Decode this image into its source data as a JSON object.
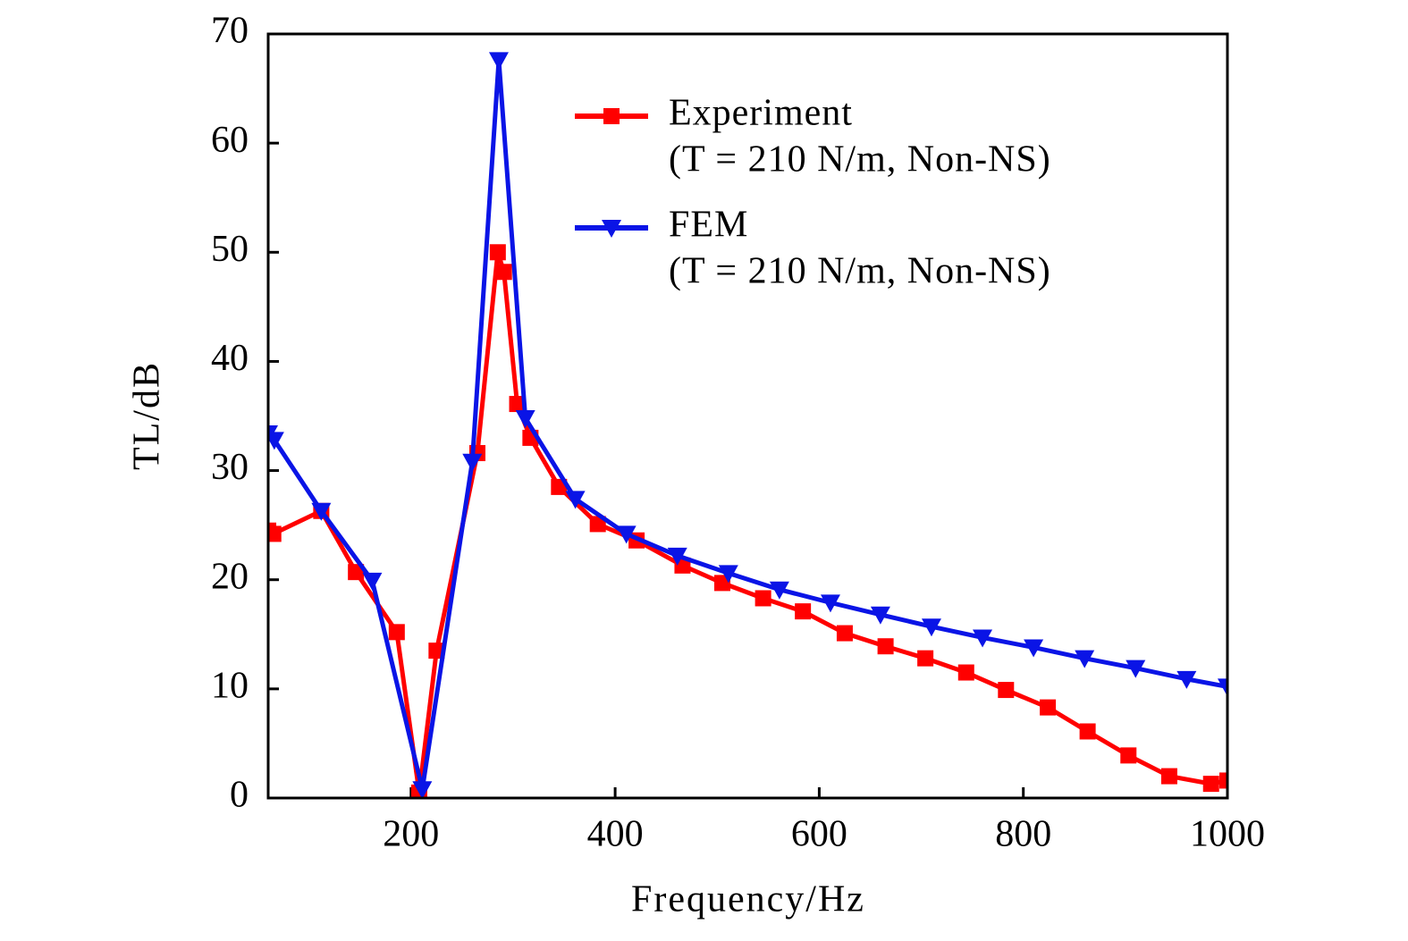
{
  "chart_data": {
    "type": "line",
    "x_label": "Frequency/Hz",
    "y_label": "TL/dB",
    "xlim": [
      60,
      1000
    ],
    "xticks": [
      200,
      400,
      600,
      800,
      1000
    ],
    "ylim": [
      0,
      70
    ],
    "yticks": [
      0,
      10,
      20,
      30,
      40,
      50,
      60,
      70
    ],
    "legend": "upper right",
    "series": [
      {
        "name": "Experiment",
        "note": "(T = 210 N/m, Non-NS)",
        "color": "#ff0000",
        "marker": "square",
        "x": [
          60,
          65,
          112,
          146,
          186,
          208,
          225,
          265,
          285,
          291,
          304,
          317,
          345,
          383,
          421,
          466,
          505,
          545,
          584,
          625,
          665,
          704,
          744,
          783,
          824,
          863,
          903,
          943,
          984,
          1000
        ],
        "values": [
          24.5,
          24.2,
          26.3,
          20.7,
          15.2,
          0.5,
          13.5,
          31.6,
          50,
          48.2,
          36.1,
          33,
          28.5,
          25.1,
          23.6,
          21.3,
          19.7,
          18.3,
          17.1,
          15.1,
          13.9,
          12.8,
          11.5,
          9.9,
          8.3,
          6.1,
          3.9,
          2.0,
          1.3,
          1.6
        ]
      },
      {
        "name": "FEM",
        "note": "(T = 210 N/m, Non-NS)",
        "color": "#0a14e6",
        "marker": "triangle-down",
        "x": [
          60,
          66,
          112,
          162,
          211,
          260,
          286,
          312,
          361,
          411,
          461,
          511,
          561,
          611,
          660,
          710,
          760,
          810,
          860,
          910,
          960,
          1000
        ],
        "values": [
          33.4,
          32.8,
          26.3,
          19.9,
          0.8,
          30.8,
          67.6,
          34.8,
          27.4,
          24.2,
          22.2,
          20.6,
          19.1,
          17.9,
          16.8,
          15.7,
          14.7,
          13.8,
          12.8,
          11.9,
          10.9,
          10.2
        ]
      }
    ]
  }
}
